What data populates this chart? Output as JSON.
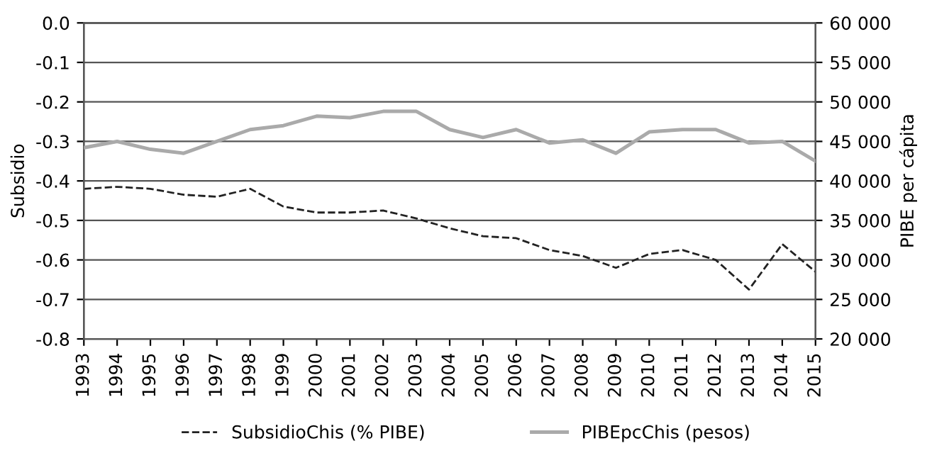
{
  "chart_data": {
    "type": "line",
    "categories": [
      "1993",
      "1994",
      "1995",
      "1996",
      "1997",
      "1998",
      "1999",
      "2000",
      "2001",
      "2002",
      "2003",
      "2004",
      "2005",
      "2006",
      "2007",
      "2008",
      "2009",
      "2010",
      "2011",
      "2012",
      "2013",
      "2014",
      "2015"
    ],
    "series": [
      {
        "name": "SubsidioChis (% PIBE)",
        "color": "#222222",
        "line_style": "dashed",
        "values": [
          -0.42,
          -0.415,
          -0.42,
          -0.435,
          -0.44,
          -0.42,
          -0.465,
          -0.48,
          -0.48,
          -0.475,
          -0.495,
          -0.52,
          -0.54,
          -0.545,
          -0.575,
          -0.59,
          -0.62,
          -0.585,
          -0.575,
          -0.6,
          -0.675,
          -0.56,
          -0.63
        ]
      },
      {
        "name": "PIBEpcChis (pesos)",
        "color": "#aaaaaa",
        "line_style": "solid",
        "axis": "y2",
        "values": [
          44200,
          45000,
          44000,
          43500,
          45000,
          46500,
          47000,
          48200,
          48000,
          48800,
          48800,
          46500,
          45500,
          46500,
          44800,
          45200,
          43500,
          46200,
          46500,
          46500,
          44800,
          45000,
          42500
        ]
      }
    ],
    "ylabel": "Subsidio",
    "y2label": "PIBE per cápita",
    "ylim": [
      -0.8,
      0.0
    ],
    "yticks": [
      -0.8,
      -0.7,
      -0.6,
      -0.5,
      -0.4,
      -0.3,
      -0.2,
      -0.1,
      {
        "value": 0,
        "label": "0.0"
      }
    ],
    "y2lim": [
      20000,
      60000
    ],
    "y2ticks": [
      {
        "value": 20000,
        "label": "20 000"
      },
      {
        "value": 25000,
        "label": "25 000"
      },
      {
        "value": 30000,
        "label": "30 000"
      },
      {
        "value": 35000,
        "label": "35 000"
      },
      {
        "value": 40000,
        "label": "40 000"
      },
      {
        "value": 45000,
        "label": "45 000"
      },
      {
        "value": 50000,
        "label": "50 000"
      },
      {
        "value": 55000,
        "label": "55 000"
      },
      {
        "value": 60000,
        "label": "60 000"
      }
    ],
    "grid": "y",
    "legend": "bottom",
    "marker": "none"
  }
}
